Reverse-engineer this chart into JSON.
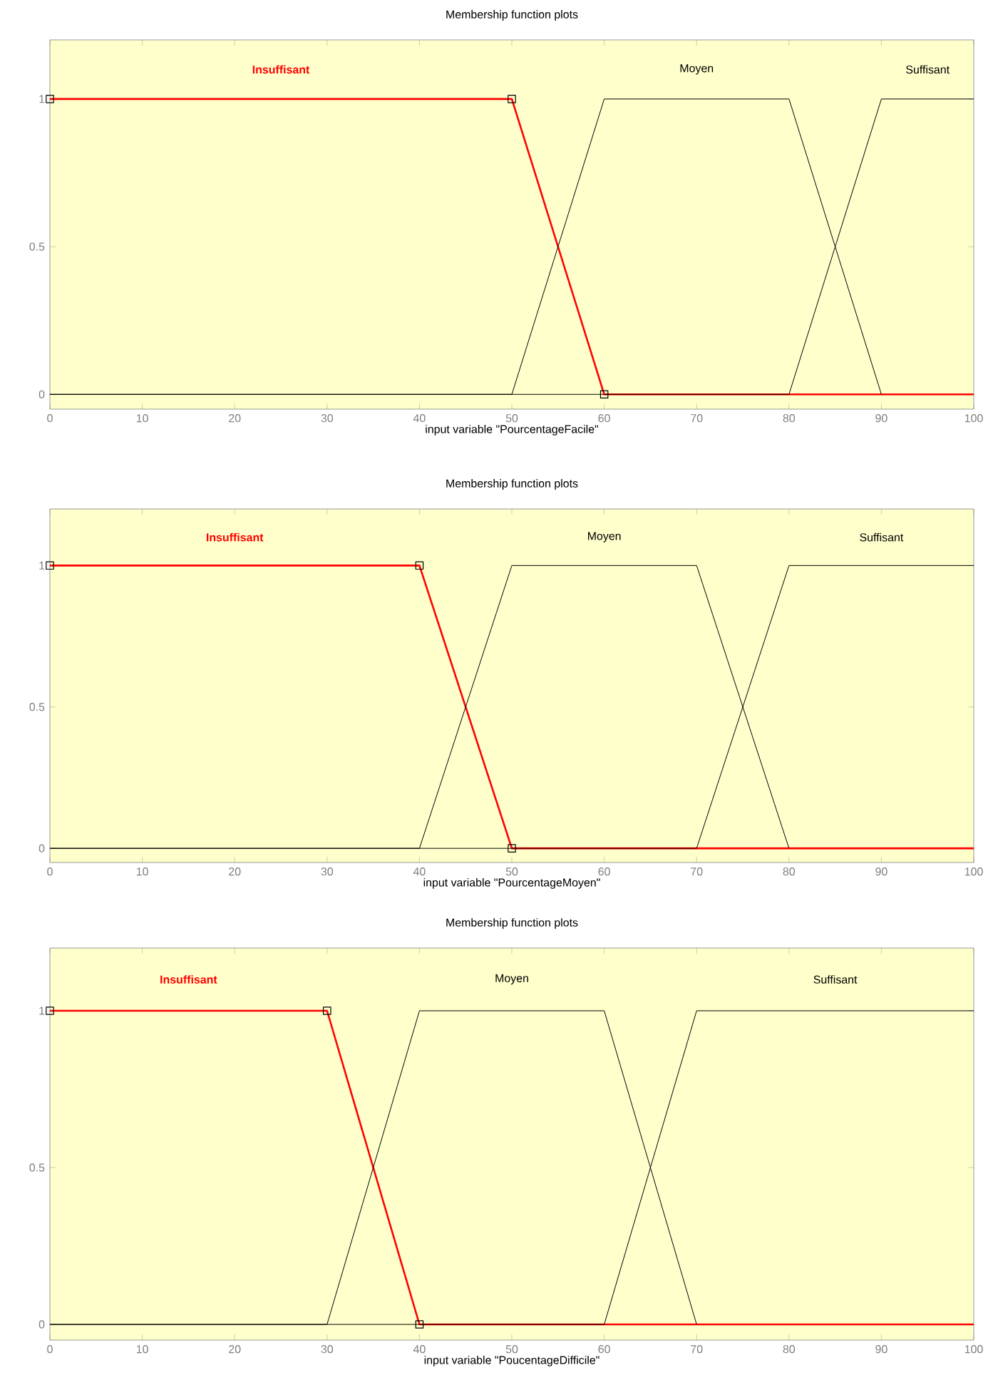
{
  "chart_data": [
    {
      "type": "line",
      "title": "Membership function plots",
      "xlabel": "input variable \"PourcentageFacile\"",
      "xlim": [
        0,
        100
      ],
      "ylim": [
        -0.05,
        1.2
      ],
      "xticks": [
        0,
        10,
        20,
        30,
        40,
        50,
        60,
        70,
        80,
        90,
        100
      ],
      "yticks": [
        0,
        0.5,
        1
      ],
      "series": [
        {
          "name": "Insuffisant",
          "color": "#ff0000",
          "marker": "square",
          "x": [
            0,
            50,
            60,
            100
          ],
          "values": [
            1,
            1,
            0,
            0
          ]
        },
        {
          "name": "Moyen",
          "color": "#000000",
          "x": [
            0,
            50,
            60,
            80,
            90
          ],
          "values": [
            0,
            0,
            1,
            1,
            0
          ]
        },
        {
          "name": "Suffisant",
          "color": "#000000",
          "x": [
            0,
            80,
            90,
            100
          ],
          "values": [
            0,
            0,
            1,
            1
          ]
        }
      ]
    },
    {
      "type": "line",
      "title": "Membership function plots",
      "xlabel": "input variable \"PourcentageMoyen\"",
      "xlim": [
        0,
        100
      ],
      "ylim": [
        -0.05,
        1.2
      ],
      "xticks": [
        0,
        10,
        20,
        30,
        40,
        50,
        60,
        70,
        80,
        90,
        100
      ],
      "yticks": [
        0,
        0.5,
        1
      ],
      "series": [
        {
          "name": "Insuffisant",
          "color": "#ff0000",
          "marker": "square",
          "x": [
            0,
            40,
            50,
            100
          ],
          "values": [
            1,
            1,
            0,
            0
          ]
        },
        {
          "name": "Moyen",
          "color": "#000000",
          "x": [
            0,
            40,
            50,
            70,
            80
          ],
          "values": [
            0,
            0,
            1,
            1,
            0
          ]
        },
        {
          "name": "Suffisant",
          "color": "#000000",
          "x": [
            0,
            70,
            80,
            100
          ],
          "values": [
            0,
            0,
            1,
            1
          ]
        }
      ]
    },
    {
      "type": "line",
      "title": "Membership function plots",
      "xlabel": "input variable \"PoucentageDifficile\"",
      "xlim": [
        0,
        100
      ],
      "ylim": [
        -0.05,
        1.2
      ],
      "xticks": [
        0,
        10,
        20,
        30,
        40,
        50,
        60,
        70,
        80,
        90,
        100
      ],
      "yticks": [
        0,
        0.5,
        1
      ],
      "series": [
        {
          "name": "Insuffisant",
          "color": "#ff0000",
          "marker": "square",
          "x": [
            0,
            30,
            40,
            100
          ],
          "values": [
            1,
            1,
            0,
            0
          ]
        },
        {
          "name": "Moyen",
          "color": "#000000",
          "x": [
            0,
            30,
            40,
            60,
            70
          ],
          "values": [
            0,
            0,
            1,
            1,
            0
          ]
        },
        {
          "name": "Suffisant",
          "color": "#000000",
          "x": [
            0,
            60,
            70,
            100
          ],
          "values": [
            0,
            0,
            1,
            1
          ]
        }
      ]
    }
  ]
}
